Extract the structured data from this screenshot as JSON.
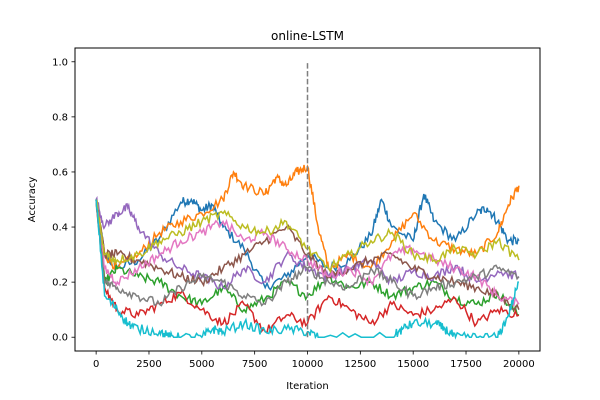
{
  "chart_data": {
    "type": "line",
    "title": "online-LSTM",
    "xlabel": "Iteration",
    "ylabel": "Accuracy",
    "xlim": [
      -1000,
      21000
    ],
    "ylim": [
      -0.05,
      1.05
    ],
    "xticks": [
      0,
      2500,
      5000,
      7500,
      10000,
      12500,
      15000,
      17500,
      20000
    ],
    "yticks": [
      0.0,
      0.2,
      0.4,
      0.6,
      0.8,
      1.0
    ],
    "grid": false,
    "legend": "none",
    "reference_line": {
      "x": 10000,
      "y": [
        0.0,
        1.0
      ],
      "style": "dashed",
      "color": "#7f7f7f"
    },
    "series": [
      {
        "color": "#1f77b4",
        "x": [
          0,
          400,
          1000,
          2000,
          3000,
          4000,
          4500,
          5000,
          5500,
          6000,
          7000,
          8000,
          9000,
          10000,
          11000,
          12000,
          13000,
          13500,
          14000,
          15000,
          15500,
          16000,
          17000,
          18000,
          18500,
          19000,
          19500,
          20000
        ],
        "y": [
          0.5,
          0.3,
          0.25,
          0.28,
          0.36,
          0.49,
          0.5,
          0.46,
          0.48,
          0.4,
          0.32,
          0.18,
          0.22,
          0.3,
          0.25,
          0.28,
          0.37,
          0.5,
          0.4,
          0.35,
          0.52,
          0.42,
          0.35,
          0.45,
          0.47,
          0.42,
          0.35,
          0.35
        ]
      },
      {
        "color": "#ff7f0e",
        "x": [
          0,
          400,
          1000,
          2000,
          3000,
          4000,
          5000,
          6000,
          6500,
          7000,
          8000,
          8500,
          9000,
          9500,
          10000,
          10500,
          11000,
          12000,
          13000,
          14000,
          15000,
          16000,
          17000,
          18000,
          19000,
          19500,
          20000
        ],
        "y": [
          0.5,
          0.3,
          0.25,
          0.3,
          0.38,
          0.42,
          0.45,
          0.5,
          0.6,
          0.55,
          0.52,
          0.58,
          0.55,
          0.6,
          0.62,
          0.4,
          0.25,
          0.3,
          0.25,
          0.35,
          0.45,
          0.35,
          0.32,
          0.3,
          0.38,
          0.48,
          0.55
        ]
      },
      {
        "color": "#2ca02c",
        "x": [
          0,
          400,
          1000,
          2000,
          3000,
          4000,
          5000,
          6000,
          7000,
          8000,
          9000,
          10000,
          11000,
          12000,
          13000,
          14000,
          15000,
          16000,
          17000,
          18000,
          19000,
          20000
        ],
        "y": [
          0.5,
          0.2,
          0.25,
          0.22,
          0.2,
          0.15,
          0.12,
          0.18,
          0.1,
          0.14,
          0.2,
          0.15,
          0.22,
          0.18,
          0.2,
          0.15,
          0.18,
          0.2,
          0.14,
          0.12,
          0.16,
          0.08
        ]
      },
      {
        "color": "#d62728",
        "x": [
          0,
          400,
          1000,
          2000,
          3000,
          4000,
          5000,
          6000,
          7000,
          8000,
          9000,
          10000,
          11000,
          12000,
          13000,
          14000,
          15000,
          16000,
          17000,
          18000,
          19000,
          20000
        ],
        "y": [
          0.5,
          0.18,
          0.1,
          0.08,
          0.12,
          0.16,
          0.1,
          0.05,
          0.12,
          0.02,
          0.08,
          0.05,
          0.15,
          0.1,
          0.05,
          0.12,
          0.08,
          0.1,
          0.14,
          0.05,
          0.1,
          0.08
        ]
      },
      {
        "color": "#9467bd",
        "x": [
          0,
          400,
          1000,
          1500,
          2000,
          3000,
          4000,
          5000,
          6000,
          7000,
          8000,
          9000,
          10000,
          11000,
          12000,
          13000,
          14000,
          15000,
          16000,
          17000,
          18000,
          19000,
          20000
        ],
        "y": [
          0.5,
          0.4,
          0.45,
          0.47,
          0.4,
          0.3,
          0.25,
          0.22,
          0.18,
          0.25,
          0.2,
          0.3,
          0.25,
          0.22,
          0.25,
          0.28,
          0.2,
          0.24,
          0.22,
          0.26,
          0.2,
          0.24,
          0.22
        ]
      },
      {
        "color": "#8c564b",
        "x": [
          0,
          400,
          1000,
          2000,
          3000,
          4000,
          5000,
          6000,
          7000,
          8000,
          9000,
          10000,
          11000,
          12000,
          13000,
          14000,
          15000,
          16000,
          17000,
          18000,
          19000,
          20000
        ],
        "y": [
          0.5,
          0.3,
          0.3,
          0.28,
          0.25,
          0.22,
          0.2,
          0.25,
          0.3,
          0.35,
          0.4,
          0.3,
          0.22,
          0.25,
          0.28,
          0.3,
          0.25,
          0.22,
          0.2,
          0.18,
          0.15,
          0.1
        ]
      },
      {
        "color": "#e377c2",
        "x": [
          0,
          400,
          1000,
          2000,
          3000,
          4000,
          5000,
          6000,
          7000,
          8000,
          9000,
          10000,
          11000,
          12000,
          13000,
          14000,
          15000,
          16000,
          17000,
          18000,
          19000,
          20000
        ],
        "y": [
          0.5,
          0.25,
          0.2,
          0.25,
          0.3,
          0.35,
          0.38,
          0.42,
          0.35,
          0.38,
          0.32,
          0.28,
          0.22,
          0.25,
          0.2,
          0.3,
          0.32,
          0.28,
          0.25,
          0.22,
          0.15,
          0.12
        ]
      },
      {
        "color": "#7f7f7f",
        "x": [
          0,
          400,
          1000,
          2000,
          3000,
          4000,
          5000,
          6000,
          7000,
          8000,
          9000,
          10000,
          11000,
          12000,
          13000,
          14000,
          15000,
          16000,
          17000,
          18000,
          19000,
          20000
        ],
        "y": [
          0.5,
          0.2,
          0.18,
          0.15,
          0.12,
          0.18,
          0.22,
          0.2,
          0.15,
          0.12,
          0.2,
          0.25,
          0.2,
          0.18,
          0.25,
          0.2,
          0.15,
          0.18,
          0.2,
          0.22,
          0.25,
          0.22
        ]
      },
      {
        "color": "#bcbd22",
        "x": [
          0,
          400,
          1000,
          2000,
          3000,
          4000,
          5000,
          6000,
          7000,
          8000,
          9000,
          10000,
          11000,
          12000,
          13000,
          14000,
          15000,
          16000,
          17000,
          18000,
          19000,
          20000
        ],
        "y": [
          0.5,
          0.3,
          0.28,
          0.3,
          0.35,
          0.38,
          0.42,
          0.45,
          0.4,
          0.38,
          0.42,
          0.32,
          0.25,
          0.3,
          0.35,
          0.38,
          0.3,
          0.28,
          0.32,
          0.3,
          0.35,
          0.28
        ]
      },
      {
        "color": "#17becf",
        "x": [
          0,
          400,
          1000,
          1500,
          2000,
          3000,
          3500,
          4000,
          5000,
          5500,
          6000,
          7000,
          8000,
          9000,
          10000,
          10500,
          14000,
          14500,
          15000,
          16000,
          16500,
          17000,
          18000,
          19000,
          19500,
          20000
        ],
        "y": [
          0.5,
          0.15,
          0.1,
          0.05,
          0.03,
          0.02,
          0.0,
          0.0,
          0.0,
          0.03,
          0.02,
          0.05,
          0.02,
          0.03,
          0.02,
          0.0,
          0.0,
          0.03,
          0.05,
          0.05,
          0.03,
          0.0,
          0.0,
          0.0,
          0.08,
          0.2
        ]
      }
    ]
  }
}
